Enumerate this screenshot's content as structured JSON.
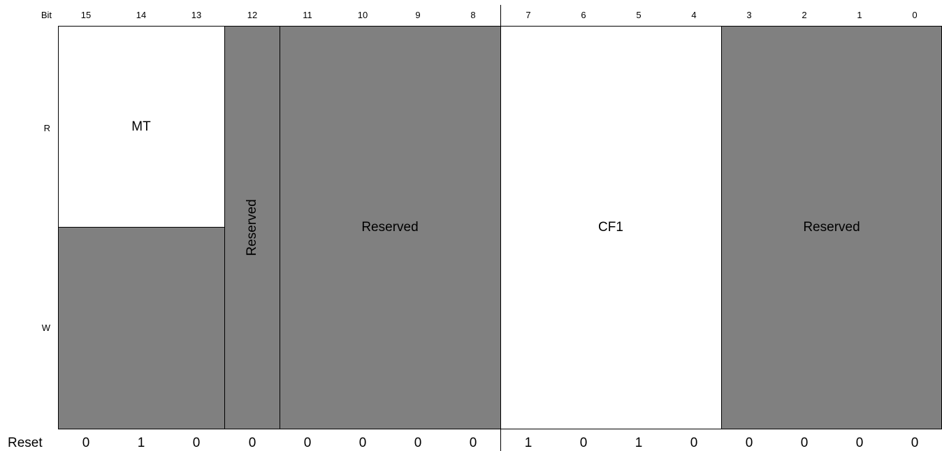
{
  "header": {
    "bit_label": "Bit",
    "bits": [
      "15",
      "14",
      "13",
      "12",
      "11",
      "10",
      "9",
      "8",
      "7",
      "6",
      "5",
      "4",
      "3",
      "2",
      "1",
      "0"
    ]
  },
  "rows": {
    "read": "R",
    "write": "W"
  },
  "fields": {
    "mt": "MT",
    "reserved_12": "Reserved",
    "reserved_11_8": "Reserved",
    "cf1": "CF1",
    "reserved_3_0": "Reserved"
  },
  "reset": {
    "label": "Reset",
    "values": [
      "0",
      "1",
      "0",
      "0",
      "0",
      "0",
      "0",
      "0",
      "1",
      "0",
      "1",
      "0",
      "0",
      "0",
      "0",
      "0"
    ]
  },
  "colors": {
    "reserved_fill": "#808080",
    "field_fill": "#ffffff",
    "line": "#000000"
  }
}
